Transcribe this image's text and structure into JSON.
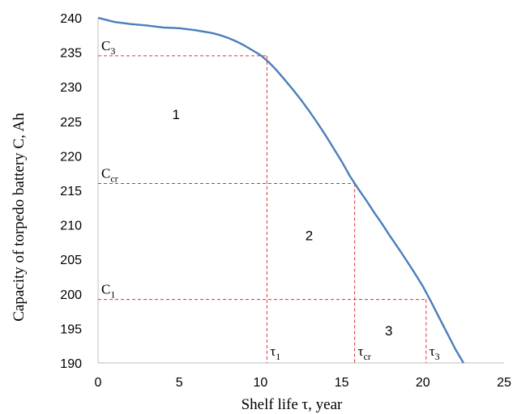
{
  "chart_data": {
    "type": "line",
    "title": "",
    "xlabel": "Shelf life τ, year",
    "ylabel": "Capacity  of  torpedo battery  C, Ah",
    "xlim": [
      0,
      25
    ],
    "ylim": [
      190,
      240
    ],
    "x_ticks": [
      "0",
      "5",
      "10",
      "15",
      "20",
      "25"
    ],
    "y_ticks": [
      "190",
      "195",
      "200",
      "205",
      "210",
      "215",
      "220",
      "225",
      "230",
      "235",
      "240"
    ],
    "grid": false,
    "legend": "none",
    "line_color": "#4a7ebb",
    "reference_color": "#e03030",
    "series": [
      {
        "x": [
          0,
          1,
          2,
          3,
          4,
          5,
          6,
          7,
          7.5,
          8,
          8.5,
          9,
          9.5,
          10,
          10.5,
          11,
          11.5,
          12,
          12.5,
          13,
          13.5,
          14,
          14.5,
          15,
          15.5,
          16,
          16.5,
          17,
          17.5,
          18,
          18.5,
          19,
          19.5,
          20,
          20.5,
          21,
          21.5,
          22,
          22.5
        ],
        "y": [
          240,
          239.4,
          239.1,
          238.9,
          238.6,
          238.5,
          238.2,
          237.8,
          237.5,
          237.1,
          236.6,
          236,
          235.3,
          234.6,
          233.6,
          232.4,
          231,
          229.6,
          228.1,
          226.5,
          224.8,
          223,
          221.1,
          219.2,
          217.1,
          215.3,
          213.6,
          211.8,
          210.1,
          208.3,
          206.6,
          204.8,
          203,
          201.1,
          198.9,
          196.6,
          194.3,
          192,
          190
        ]
      }
    ],
    "reference_lines": [
      {
        "label": "C",
        "sub": "3",
        "y": 234.5,
        "x": 10.4
      },
      {
        "label": "C",
        "sub": "cr",
        "y": 216,
        "x": 15.8
      },
      {
        "label": "C",
        "sub": "1",
        "y": 199.2,
        "x": 20.2
      }
    ],
    "time_labels": [
      {
        "label": "τ",
        "sub": "1",
        "x": 10.4
      },
      {
        "label": "τ",
        "sub": "cr",
        "x": 15.8
      },
      {
        "label": "τ",
        "sub": "3",
        "x": 20.2
      }
    ],
    "regions": [
      {
        "label": "1",
        "x": 4.8,
        "y": 225.3
      },
      {
        "label": "2",
        "x": 13,
        "y": 207.8
      },
      {
        "label": "3",
        "x": 17.9,
        "y": 194
      }
    ]
  }
}
